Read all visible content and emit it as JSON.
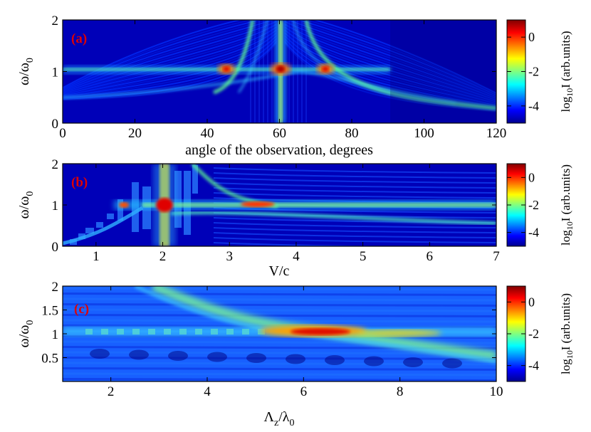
{
  "chart_data": [
    {
      "type": "heatmap",
      "panel_label": "(a)",
      "xlabel": "angle of the observation, degrees",
      "ylabel": "ω/ω",
      "ylabel_sub": "0",
      "xlim": [
        0,
        120
      ],
      "ylim": [
        0,
        2
      ],
      "xticks": [
        0,
        20,
        40,
        60,
        80,
        100,
        120
      ],
      "yticks": [
        0,
        1,
        2
      ],
      "colorbar": {
        "label": "log10I (arb.units)",
        "range": [
          -5,
          1
        ],
        "ticks": [
          "0",
          "-2",
          "-4"
        ],
        "tick_values": [
          0,
          -2,
          -4
        ]
      }
    },
    {
      "type": "heatmap",
      "panel_label": "(b)",
      "xlabel": "V/c",
      "ylabel": "ω/ω",
      "ylabel_sub": "0",
      "xlim": [
        0.5,
        7
      ],
      "ylim": [
        0,
        2
      ],
      "xticks": [
        1,
        2,
        3,
        4,
        5,
        6,
        7
      ],
      "yticks": [
        0,
        1,
        2
      ],
      "colorbar": {
        "label": "log10I (arb.units)",
        "range": [
          -5,
          1
        ],
        "ticks": [
          "0",
          "-2",
          "-4"
        ],
        "tick_values": [
          0,
          -2,
          -4
        ]
      }
    },
    {
      "type": "heatmap",
      "panel_label": "(c)",
      "xlabel": "Λz/λ0",
      "ylabel": "ω/ω",
      "ylabel_sub": "0",
      "xlim": [
        1,
        10
      ],
      "ylim": [
        0,
        2
      ],
      "xticks": [
        2,
        4,
        6,
        8,
        10
      ],
      "yticks": [
        0.5,
        1,
        1.5,
        2
      ],
      "ytick_labels": [
        "0.5",
        "1",
        "1.5",
        "2"
      ],
      "colorbar": {
        "label": "log10I (arb.units)",
        "range": [
          -5,
          1
        ],
        "ticks": [
          "0",
          "-2",
          "-4"
        ],
        "tick_values": [
          0,
          -2,
          -4
        ]
      }
    }
  ]
}
